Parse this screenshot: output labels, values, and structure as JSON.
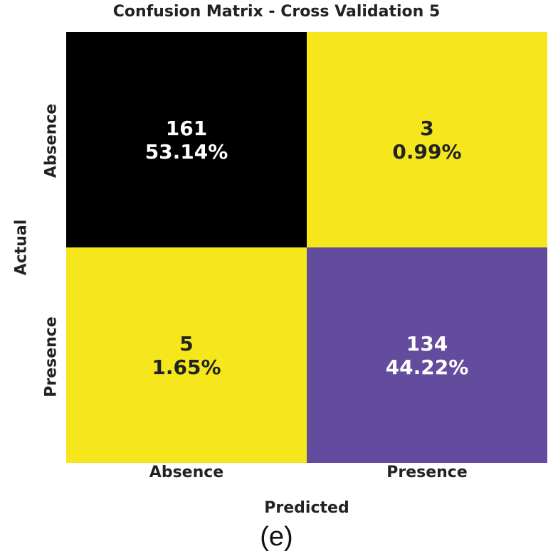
{
  "chart_data": {
    "type": "heatmap",
    "title": "Confusion Matrix - Cross Validation 5",
    "xlabel": "Predicted",
    "ylabel": "Actual",
    "x_categories": [
      "Absence",
      "Presence"
    ],
    "y_categories": [
      "Absence",
      "Presence"
    ],
    "cells": [
      {
        "actual": "Absence",
        "predicted": "Absence",
        "count": "161",
        "percent": "53.14%",
        "color": "#000000",
        "text_color": "#ffffff"
      },
      {
        "actual": "Absence",
        "predicted": "Presence",
        "count": "3",
        "percent": "0.99%",
        "color": "#f6e71c",
        "text_color": "#222222"
      },
      {
        "actual": "Presence",
        "predicted": "Absence",
        "count": "5",
        "percent": "1.65%",
        "color": "#f6e71c",
        "text_color": "#222222"
      },
      {
        "actual": "Presence",
        "predicted": "Presence",
        "count": "134",
        "percent": "44.22%",
        "color": "#634b9e",
        "text_color": "#ffffff"
      }
    ]
  },
  "caption": "(e)"
}
